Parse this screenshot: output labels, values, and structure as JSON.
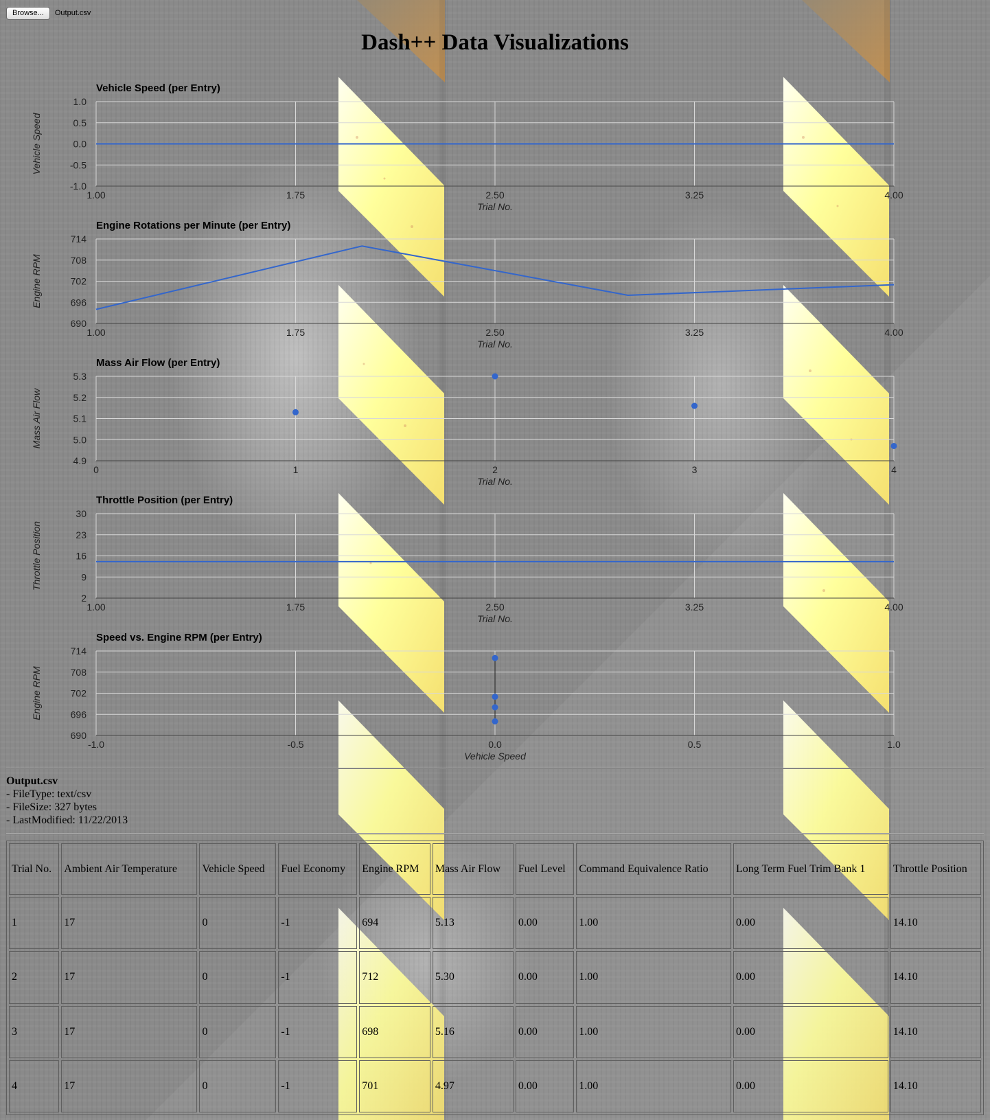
{
  "toolbar": {
    "browse_label": "Browse...",
    "file_name": "Output.csv"
  },
  "title": "Dash++ Data Visualizations",
  "colors": {
    "series": "#3366cc",
    "grid": "#d8d8d8",
    "axis": "#444444",
    "stripe": "#ffff8a"
  },
  "chart_data": [
    {
      "type": "line",
      "title": "Vehicle Speed (per Entry)",
      "xlabel": "Trial No.",
      "ylabel": "Vehicle Speed",
      "x": [
        1,
        2,
        3,
        4
      ],
      "values": [
        0,
        0,
        0,
        0
      ],
      "xlim": [
        1,
        4
      ],
      "ylim": [
        -1,
        1
      ],
      "xticks": [
        "1.00",
        "1.75",
        "2.50",
        "3.25",
        "4.00"
      ],
      "yticks": [
        "1.0",
        "0.5",
        "0.0",
        "-0.5",
        "-1.0"
      ],
      "grid": true
    },
    {
      "type": "line",
      "title": "Engine Rotations per Minute (per Entry)",
      "xlabel": "Trial No.",
      "ylabel": "Engine RPM",
      "x": [
        1,
        2,
        3,
        4
      ],
      "values": [
        694,
        712,
        698,
        701
      ],
      "xlim": [
        1,
        4
      ],
      "ylim": [
        690,
        714
      ],
      "xticks": [
        "1.00",
        "1.75",
        "2.50",
        "3.25",
        "4.00"
      ],
      "yticks": [
        "714",
        "708",
        "702",
        "696",
        "690"
      ],
      "grid": true
    },
    {
      "type": "scatter",
      "title": "Mass Air Flow (per Entry)",
      "xlabel": "Trial No.",
      "ylabel": "Mass Air Flow",
      "x": [
        1,
        2,
        3,
        4
      ],
      "values": [
        5.13,
        5.3,
        5.16,
        4.97
      ],
      "xlim": [
        0,
        4
      ],
      "ylim": [
        4.9,
        5.3
      ],
      "xticks": [
        "0",
        "1",
        "2",
        "3",
        "4"
      ],
      "yticks": [
        "5.3",
        "5.2",
        "5.1",
        "5.0",
        "4.9"
      ],
      "grid": true
    },
    {
      "type": "line",
      "title": "Throttle Position (per Entry)",
      "xlabel": "Trial No.",
      "ylabel": "Throttle Position",
      "x": [
        1,
        2,
        3,
        4
      ],
      "values": [
        14.1,
        14.1,
        14.1,
        14.1
      ],
      "xlim": [
        1,
        4
      ],
      "ylim": [
        2,
        30
      ],
      "xticks": [
        "1.00",
        "1.75",
        "2.50",
        "3.25",
        "4.00"
      ],
      "yticks": [
        "30",
        "23",
        "16",
        "9",
        "2"
      ],
      "grid": true
    },
    {
      "type": "scatter",
      "title": "Speed vs. Engine RPM (per Entry)",
      "xlabel": "Vehicle Speed",
      "ylabel": "Engine RPM",
      "x": [
        0,
        0,
        0,
        0
      ],
      "values": [
        694,
        712,
        698,
        701
      ],
      "xlim": [
        -1,
        1
      ],
      "ylim": [
        690,
        714
      ],
      "xticks": [
        "-1.0",
        "-0.5",
        "0.0",
        "0.5",
        "1.0"
      ],
      "yticks": [
        "714",
        "708",
        "702",
        "696",
        "690"
      ],
      "grid": true
    }
  ],
  "file_info": {
    "name": "Output.csv",
    "type_line": "- FileType: text/csv",
    "size_line": "- FileSize: 327 bytes",
    "modified_line": "- LastModified: 11/22/2013"
  },
  "table": {
    "headers": [
      "Trial No.",
      "Ambient Air Temperature",
      "Vehicle Speed",
      "Fuel Economy",
      "Engine RPM",
      "Mass Air Flow",
      "Fuel Level",
      "Command Equivalence Ratio",
      "Long Term Fuel Trim Bank 1",
      "Throttle Position"
    ],
    "rows": [
      [
        "1",
        "17",
        "0",
        "-1",
        "694",
        "5.13",
        "0.00",
        "1.00",
        "0.00",
        "14.10"
      ],
      [
        "2",
        "17",
        "0",
        "-1",
        "712",
        "5.30",
        "0.00",
        "1.00",
        "0.00",
        "14.10"
      ],
      [
        "3",
        "17",
        "0",
        "-1",
        "698",
        "5.16",
        "0.00",
        "1.00",
        "0.00",
        "14.10"
      ],
      [
        "4",
        "17",
        "0",
        "-1",
        "701",
        "4.97",
        "0.00",
        "1.00",
        "0.00",
        "14.10"
      ]
    ]
  }
}
